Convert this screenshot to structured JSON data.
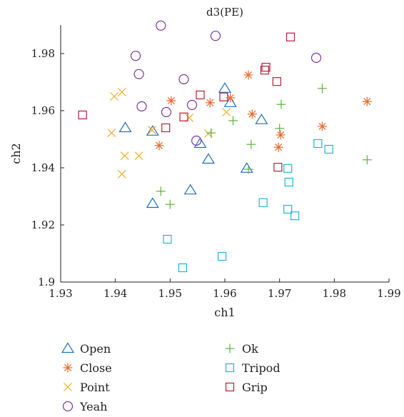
{
  "chart_data": {
    "type": "scatter",
    "title": "d3(PE)",
    "xlabel": "ch1",
    "ylabel": "ch2",
    "xlim": [
      1.93,
      1.99
    ],
    "ylim": [
      1.9,
      1.99
    ],
    "x_ticks": [
      "1.93",
      "1.94",
      "1.95",
      "1.96",
      "1.97",
      "1.98",
      "1.99"
    ],
    "y_ticks": [
      "1.9",
      "1.92",
      "1.94",
      "1.96",
      "1.98"
    ],
    "legend_placement": "bottom",
    "grid": false,
    "series": [
      {
        "name": "Open",
        "marker": "triangle",
        "color": "#1f6fc2",
        "points": [
          [
            1.9418,
            1.954
          ],
          [
            1.9468,
            1.9528
          ],
          [
            1.9468,
            1.9275
          ],
          [
            1.9537,
            1.9322
          ],
          [
            1.9555,
            1.9485
          ],
          [
            1.957,
            1.943
          ],
          [
            1.96,
            1.9678
          ],
          [
            1.961,
            1.9628
          ],
          [
            1.964,
            1.9398
          ],
          [
            1.9667,
            1.9568
          ]
        ]
      },
      {
        "name": "Close",
        "marker": "asterisk",
        "color": "#e8692a",
        "points": [
          [
            1.948,
            1.9478
          ],
          [
            1.9502,
            1.9635
          ],
          [
            1.9573,
            1.9628
          ],
          [
            1.961,
            1.9645
          ],
          [
            1.9643,
            1.9725
          ],
          [
            1.965,
            1.9588
          ],
          [
            1.9698,
            1.9472
          ],
          [
            1.9702,
            1.9515
          ],
          [
            1.9778,
            1.9545
          ],
          [
            1.986,
            1.9632
          ]
        ]
      },
      {
        "name": "Point",
        "marker": "x",
        "color": "#f0aa23",
        "points": [
          [
            1.9393,
            1.9522
          ],
          [
            1.9398,
            1.965
          ],
          [
            1.9412,
            1.9665
          ],
          [
            1.9412,
            1.9378
          ],
          [
            1.9417,
            1.9442
          ],
          [
            1.9443,
            1.9442
          ],
          [
            1.9467,
            1.9532
          ],
          [
            1.9535,
            1.9575
          ],
          [
            1.957,
            1.952
          ],
          [
            1.9603,
            1.9595
          ]
        ]
      },
      {
        "name": "Yeah",
        "marker": "circle",
        "color": "#7d3599",
        "points": [
          [
            1.9437,
            1.9792
          ],
          [
            1.9443,
            1.9728
          ],
          [
            1.9448,
            1.9615
          ],
          [
            1.9483,
            1.9898
          ],
          [
            1.9493,
            1.9595
          ],
          [
            1.9525,
            1.971
          ],
          [
            1.954,
            1.962
          ],
          [
            1.9548,
            1.9495
          ],
          [
            1.9583,
            1.9862
          ],
          [
            1.9767,
            1.9785
          ]
        ]
      },
      {
        "name": "Ok",
        "marker": "plus",
        "color": "#5fb040",
        "points": [
          [
            1.9483,
            1.9318
          ],
          [
            1.95,
            1.9272
          ],
          [
            1.9575,
            1.9522
          ],
          [
            1.9615,
            1.9565
          ],
          [
            1.9643,
            1.9395
          ],
          [
            1.9648,
            1.9482
          ],
          [
            1.97,
            1.9538
          ],
          [
            1.9703,
            1.9622
          ],
          [
            1.9778,
            1.9678
          ],
          [
            1.986,
            1.9428
          ]
        ]
      },
      {
        "name": "Tripod",
        "marker": "square",
        "color": "#22b4dc",
        "points": [
          [
            1.9495,
            1.915
          ],
          [
            1.9523,
            1.905
          ],
          [
            1.9595,
            1.909
          ],
          [
            1.967,
            1.9278
          ],
          [
            1.9715,
            1.9398
          ],
          [
            1.9715,
            1.9255
          ],
          [
            1.9717,
            1.935
          ],
          [
            1.9728,
            1.9232
          ],
          [
            1.977,
            1.9485
          ],
          [
            1.979,
            1.9465
          ]
        ]
      },
      {
        "name": "Grip",
        "marker": "square",
        "color": "#b51f3a",
        "points": [
          [
            1.934,
            1.9585
          ],
          [
            1.9492,
            1.954
          ],
          [
            1.9525,
            1.9578
          ],
          [
            1.9555,
            1.9655
          ],
          [
            1.9598,
            1.9648
          ],
          [
            1.9673,
            1.9742
          ],
          [
            1.9675,
            1.9752
          ],
          [
            1.9695,
            1.9702
          ],
          [
            1.9697,
            1.9402
          ],
          [
            1.972,
            1.9858
          ]
        ]
      }
    ]
  }
}
